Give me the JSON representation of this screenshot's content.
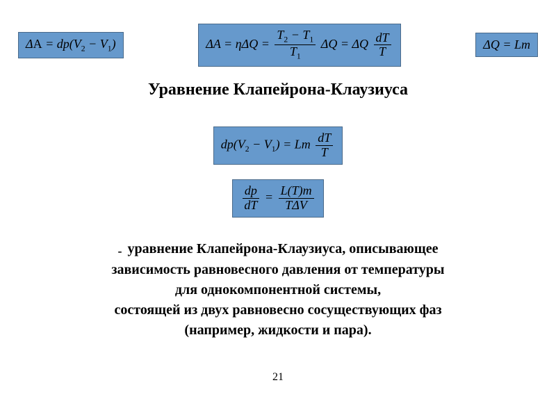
{
  "colors": {
    "box_bg": "#6699cc",
    "box_border": "#4a6a8a",
    "page_bg": "#ffffff",
    "text": "#000000"
  },
  "fonts": {
    "family": "Times New Roman",
    "title_size_pt": 24,
    "body_size_pt": 20,
    "eq_size_pt": 18
  },
  "equations": {
    "top_left": "ΔA = dp(V₂ − V₁)",
    "top_center": "ΔA = ηΔQ = ((T₂ − T₁)/T₁) ΔQ = ΔQ (dT/T)",
    "top_right": "ΔQ = Lm",
    "mid1": "dp(V₂ − V₁) = Lm (dT/T)",
    "mid2": "dp/dT = L(T)m / (TΔV)"
  },
  "title": "Уравнение Клапейрона-Клаузиуса",
  "description": {
    "bullet": "-",
    "line1": "уравнение Клапейрона-Клаузиуса, описывающее",
    "line2": "зависимость равновесного давления от температуры",
    "line3": "для однокомпонентной системы,",
    "line4": "состоящей из двух равновесно сосуществующих фаз",
    "line5": "(например, жидкости и пара)."
  },
  "page_number": "21"
}
